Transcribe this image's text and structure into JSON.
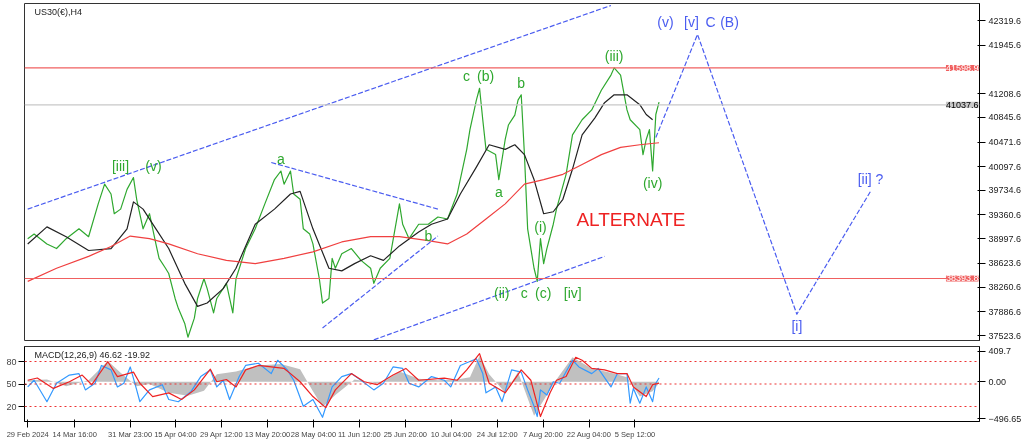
{
  "chart_data": [
    {
      "type": "line",
      "title": "US30(€),H4",
      "xlim": [
        "2024-02-28",
        "2024-12-22"
      ],
      "ylim": [
        37450,
        42580
      ],
      "yticks": [
        42319.6,
        41945.6,
        41208.6,
        40845.6,
        40471.6,
        40097.6,
        39734.6,
        39360.6,
        38997.6,
        38623.6,
        38260.6,
        37886.6,
        37523.6
      ],
      "tick_labels": "y",
      "grid": false,
      "series": [
        {
          "color": "#2fa82f",
          "x": [
            "2024-02-29",
            "2024-03-02",
            "2024-03-06",
            "2024-03-09",
            "2024-03-12",
            "2024-03-16",
            "2024-03-19",
            "2024-03-22",
            "2024-03-24",
            "2024-03-26",
            "2024-03-27",
            "2024-03-29",
            "2024-03-31",
            "2024-04-02",
            "2024-04-03",
            "2024-04-05",
            "2024-04-07",
            "2024-04-09",
            "2024-04-10",
            "2024-04-12",
            "2024-04-13",
            "2024-04-15",
            "2024-04-16",
            "2024-04-18",
            "2024-04-19",
            "2024-04-21",
            "2024-04-22",
            "2024-04-24",
            "2024-04-25",
            "2024-04-27",
            "2024-04-28",
            "2024-05-01",
            "2024-05-03",
            "2024-05-04",
            "2024-05-07",
            "2024-05-10",
            "2024-05-13",
            "2024-05-16",
            "2024-05-18",
            "2024-05-19",
            "2024-05-21",
            "2024-05-22",
            "2024-05-24",
            "2024-05-25",
            "2024-05-27",
            "2024-05-28",
            "2024-05-30",
            "2024-05-31",
            "2024-06-02",
            "2024-06-03",
            "2024-06-04",
            "2024-06-06",
            "2024-06-09",
            "2024-06-12",
            "2024-06-15",
            "2024-06-16",
            "2024-06-18",
            "2024-06-21",
            "2024-06-24",
            "2024-06-25",
            "2024-06-27",
            "2024-06-30",
            "2024-07-03",
            "2024-07-06",
            "2024-07-09",
            "2024-07-12",
            "2024-07-15",
            "2024-07-16",
            "2024-07-18",
            "2024-07-19",
            "2024-07-20",
            "2024-07-21",
            "2024-07-24",
            "2024-07-25",
            "2024-07-27",
            "2024-07-28",
            "2024-07-30",
            "2024-07-31",
            "2024-08-01",
            "2024-08-02",
            "2024-08-03",
            "2024-08-05",
            "2024-08-06",
            "2024-08-07",
            "2024-08-08",
            "2024-08-09",
            "2024-08-11",
            "2024-08-12",
            "2024-08-15",
            "2024-08-17",
            "2024-08-20",
            "2024-08-23",
            "2024-08-26",
            "2024-08-29",
            "2024-08-30",
            "2024-09-01",
            "2024-09-03",
            "2024-09-04",
            "2024-09-07",
            "2024-09-08",
            "2024-09-09",
            "2024-09-10",
            "2024-09-11",
            "2024-09-12",
            "2024-09-13"
          ],
          "values": [
            39000,
            39070,
            38920,
            38850,
            39000,
            39150,
            39030,
            39530,
            39830,
            39680,
            39380,
            39450,
            39750,
            39930,
            39600,
            39150,
            39380,
            38920,
            38700,
            38550,
            38470,
            38090,
            37940,
            37710,
            37500,
            37790,
            38090,
            38390,
            38240,
            37870,
            38090,
            38320,
            37870,
            38390,
            38850,
            39150,
            39530,
            39900,
            40030,
            39830,
            40030,
            39680,
            39600,
            39150,
            39070,
            38920,
            38390,
            38020,
            38090,
            38700,
            38550,
            38770,
            38850,
            38670,
            38550,
            38320,
            38550,
            38700,
            39530,
            39220,
            39000,
            39220,
            39220,
            39330,
            39300,
            39680,
            40360,
            40660,
            41110,
            41290,
            40810,
            40360,
            40280,
            39900,
            40510,
            40730,
            40880,
            41110,
            41190,
            40280,
            39150,
            38550,
            38350,
            39000,
            38620,
            38850,
            39220,
            39450,
            39980,
            40580,
            40810,
            40960,
            41260,
            41490,
            41600,
            41490,
            40960,
            40810,
            40660,
            40280,
            40510,
            40660,
            40030,
            40890,
            41080
          ]
        },
        {
          "color": "#222222",
          "x": [
            "2024-02-29",
            "2024-03-06",
            "2024-03-12",
            "2024-03-19",
            "2024-03-26",
            "2024-03-31",
            "2024-04-02",
            "2024-04-05",
            "2024-04-09",
            "2024-04-13",
            "2024-04-18",
            "2024-04-22",
            "2024-04-25",
            "2024-04-30",
            "2024-05-04",
            "2024-05-10",
            "2024-05-16",
            "2024-05-21",
            "2024-05-24",
            "2024-05-28",
            "2024-06-02",
            "2024-06-06",
            "2024-06-10",
            "2024-06-15",
            "2024-06-19",
            "2024-06-24",
            "2024-06-30",
            "2024-07-04",
            "2024-07-09",
            "2024-07-13",
            "2024-07-18",
            "2024-07-22",
            "2024-07-27",
            "2024-07-30",
            "2024-08-02",
            "2024-08-05",
            "2024-08-08",
            "2024-08-11",
            "2024-08-14",
            "2024-08-17",
            "2024-08-20",
            "2024-08-24",
            "2024-08-27",
            "2024-08-30",
            "2024-09-03",
            "2024-09-07",
            "2024-09-09",
            "2024-09-11"
          ],
          "values": [
            38920,
            39180,
            39030,
            38820,
            38850,
            39150,
            39560,
            39450,
            39150,
            38850,
            38320,
            37970,
            38020,
            38240,
            38550,
            39220,
            39450,
            39680,
            39720,
            39150,
            38550,
            38510,
            38620,
            38740,
            38670,
            38890,
            39100,
            39220,
            39300,
            39680,
            40090,
            40430,
            40360,
            40430,
            40280,
            39900,
            39380,
            39410,
            39600,
            40060,
            40580,
            40840,
            41070,
            41190,
            41190,
            41040,
            40890,
            40810
          ]
        },
        {
          "color": "#f04040",
          "x": [
            "2024-02-29",
            "2024-03-09",
            "2024-03-19",
            "2024-03-26",
            "2024-04-01",
            "2024-04-07",
            "2024-04-13",
            "2024-04-22",
            "2024-05-01",
            "2024-05-10",
            "2024-05-19",
            "2024-05-28",
            "2024-06-06",
            "2024-06-15",
            "2024-06-24",
            "2024-07-03",
            "2024-07-09",
            "2024-07-15",
            "2024-07-21",
            "2024-07-27",
            "2024-08-02",
            "2024-08-08",
            "2024-08-14",
            "2024-08-20",
            "2024-08-26",
            "2024-09-01",
            "2024-09-07",
            "2024-09-13"
          ],
          "values": [
            38350,
            38550,
            38730,
            38880,
            39040,
            39000,
            38920,
            38770,
            38670,
            38620,
            38700,
            38800,
            38950,
            39030,
            39030,
            38970,
            38920,
            39070,
            39300,
            39530,
            39830,
            39900,
            39980,
            40130,
            40280,
            40390,
            40430,
            40460
          ]
        },
        {
          "color": "#4a5cf0",
          "line_style": "dashed",
          "x": [
            "2024-02-29",
            "2024-08-29"
          ],
          "values": [
            39450,
            42550
          ]
        },
        {
          "color": "#4a5cf0",
          "line_style": "dashed",
          "x": [
            "2024-06-16",
            "2024-08-27"
          ],
          "values": [
            37460,
            38730
          ]
        },
        {
          "color": "#4a5cf0",
          "line_style": "dashed",
          "x": [
            "2024-05-15",
            "2024-07-06"
          ],
          "values": [
            40160,
            39450
          ]
        },
        {
          "color": "#4a5cf0",
          "line_style": "dashed",
          "x": [
            "2024-05-31",
            "2024-07-06"
          ],
          "values": [
            37640,
            39040
          ]
        },
        {
          "color": "#4a5cf0",
          "line_style": "dashed",
          "x": [
            "2024-09-12",
            "2024-09-25",
            "2024-10-26",
            "2024-11-18"
          ],
          "values": [
            40540,
            42110,
            37850,
            39720
          ]
        }
      ],
      "ref_lines": [
        {
          "axis": "y",
          "value": 41598.9,
          "label": "41598.9",
          "color": "#f06060"
        },
        {
          "axis": "y",
          "value": 41037.6,
          "label": "41037.6",
          "color": "#c8c8c8"
        },
        {
          "axis": "y",
          "value": 38393.8,
          "label": "38393.8",
          "color": "#f06060"
        }
      ],
      "annotations": [
        {
          "text": "[iii]",
          "x": "2024-04-02",
          "y": 39930
        },
        {
          "text": "(v)",
          "x": "2024-04-02",
          "y": 39930
        },
        {
          "text": "a",
          "x": "2024-05-18",
          "y": 40030
        },
        {
          "text": "c",
          "x": "2024-07-19",
          "y": 41290
        },
        {
          "text": "(b)",
          "x": "2024-07-19",
          "y": 41290
        },
        {
          "text": "b",
          "x": "2024-08-01",
          "y": 41190
        },
        {
          "text": "a",
          "x": "2024-07-25",
          "y": 39900
        },
        {
          "text": "b",
          "x": "2024-07-03",
          "y": 39220
        },
        {
          "text": "(i)",
          "x": "2024-08-07",
          "y": 39000
        },
        {
          "text": "(ii)",
          "x": "2024-08-06",
          "y": 38350
        },
        {
          "text": "c",
          "x": "2024-08-06",
          "y": 38350
        },
        {
          "text": "(c)",
          "x": "2024-08-06",
          "y": 38350
        },
        {
          "text": "[iv]",
          "x": "2024-08-06",
          "y": 38350
        },
        {
          "text": "(iii)",
          "x": "2024-08-30",
          "y": 41600
        },
        {
          "text": "(iv)",
          "x": "2024-09-11",
          "y": 40030
        },
        {
          "text": "(v)",
          "x": "2024-09-25",
          "y": 42110
        },
        {
          "text": "[v]",
          "x": "2024-09-25",
          "y": 42110
        },
        {
          "text": "C",
          "x": "2024-09-25",
          "y": 42110
        },
        {
          "text": "(B)",
          "x": "2024-09-25",
          "y": 42110
        },
        {
          "text": "[i]",
          "x": "2024-10-26",
          "y": 37850
        },
        {
          "text": "[ii] ?",
          "x": "2024-11-18",
          "y": 39720
        },
        "ALTERNATE"
      ]
    },
    {
      "type": "line",
      "title": "MACD(12,26,9) 46.62 -19.92",
      "xlim": [
        "2024-02-28",
        "2024-12-22"
      ],
      "ylim": [
        -537,
        476
      ],
      "yticks": [
        409.7,
        {
          "value": 0,
          "label": "0.00"
        },
        -496.65
      ],
      "y2lim": [
        0,
        100
      ],
      "y2ticks": [
        80,
        50,
        20
      ],
      "xticks": [
        {
          "value": "2024-02-29",
          "label": "29 Feb 2024"
        },
        {
          "value": "2024-03-14T16:00",
          "label": "14 Mar 16:00"
        },
        {
          "value": "2024-03-31T23:00",
          "label": "31 Mar 23:00"
        },
        {
          "value": "2024-04-15T04:00",
          "label": "15 Apr 04:00"
        },
        {
          "value": "2024-04-29T12:00",
          "label": "29 Apr 12:00"
        },
        {
          "value": "2024-05-13T20:00",
          "label": "13 May 20:00"
        },
        {
          "value": "2024-05-28T04:00",
          "label": "28 May 04:00"
        },
        {
          "value": "2024-06-11T12:00",
          "label": "11 Jun 12:00"
        },
        {
          "value": "2024-06-25T20:00",
          "label": "25 Jun 20:00"
        },
        {
          "value": "2024-07-10T04:00",
          "label": "10 Jul 04:00"
        },
        {
          "value": "2024-07-24T12:00",
          "label": "24 Jul 12:00"
        },
        {
          "value": "2024-08-07T20:00",
          "label": "7 Aug 20:00"
        },
        {
          "value": "2024-08-22T04:00",
          "label": "22 Aug 04:00"
        },
        {
          "value": "2024-09-05T12:00",
          "label": "5 Sep 12:00"
        }
      ],
      "grid": false,
      "series": [
        {
          "type": "area",
          "color": "#c0c0c0",
          "x": [
            "2024-02-29",
            "2024-03-06",
            "2024-03-12",
            "2024-03-19",
            "2024-03-25",
            "2024-03-29",
            "2024-04-03",
            "2024-04-07",
            "2024-04-13",
            "2024-04-19",
            "2024-04-24",
            "2024-04-28",
            "2024-05-04",
            "2024-05-11",
            "2024-05-18",
            "2024-05-24",
            "2024-05-28",
            "2024-05-31",
            "2024-06-04",
            "2024-06-10",
            "2024-06-18",
            "2024-06-24",
            "2024-06-30",
            "2024-07-06",
            "2024-07-12",
            "2024-07-16",
            "2024-07-19",
            "2024-07-22",
            "2024-07-27",
            "2024-07-31",
            "2024-08-05",
            "2024-08-08",
            "2024-08-12",
            "2024-08-17",
            "2024-08-23",
            "2024-08-29",
            "2024-09-03",
            "2024-09-07",
            "2024-09-11",
            "2024-09-13"
          ],
          "values": [
            20,
            30,
            -60,
            20,
            280,
            120,
            -60,
            -30,
            -150,
            -190,
            -120,
            100,
            140,
            220,
            240,
            170,
            -130,
            -340,
            -180,
            30,
            -30,
            140,
            40,
            20,
            30,
            60,
            350,
            100,
            -150,
            130,
            -460,
            -250,
            30,
            330,
            180,
            120,
            60,
            -200,
            -130,
            -20
          ]
        },
        {
          "color": "#3399ff",
          "x": [
            "2024-02-29",
            "2024-03-02",
            "2024-03-06",
            "2024-03-09",
            "2024-03-13",
            "2024-03-16",
            "2024-03-18",
            "2024-03-21",
            "2024-03-23",
            "2024-03-26",
            "2024-03-28",
            "2024-03-30",
            "2024-04-01",
            "2024-04-03",
            "2024-04-04",
            "2024-04-07",
            "2024-04-11",
            "2024-04-13",
            "2024-04-16",
            "2024-04-20",
            "2024-04-23",
            "2024-04-26",
            "2024-04-28",
            "2024-04-30",
            "2024-05-02",
            "2024-05-05",
            "2024-05-07",
            "2024-05-11",
            "2024-05-15",
            "2024-05-17",
            "2024-05-20",
            "2024-05-22",
            "2024-05-25",
            "2024-05-28",
            "2024-05-31",
            "2024-06-03",
            "2024-06-06",
            "2024-06-09",
            "2024-06-12",
            "2024-06-16",
            "2024-06-19",
            "2024-06-22",
            "2024-06-25",
            "2024-06-27",
            "2024-06-30",
            "2024-07-04",
            "2024-07-08",
            "2024-07-10",
            "2024-07-13",
            "2024-07-18",
            "2024-07-20",
            "2024-07-21",
            "2024-07-24",
            "2024-07-26",
            "2024-07-29",
            "2024-08-01",
            "2024-08-03",
            "2024-08-05",
            "2024-08-06",
            "2024-08-07",
            "2024-08-09",
            "2024-08-11",
            "2024-08-13",
            "2024-08-17",
            "2024-08-19",
            "2024-08-23",
            "2024-08-25",
            "2024-08-29",
            "2024-08-31",
            "2024-09-03",
            "2024-09-04",
            "2024-09-05",
            "2024-09-07",
            "2024-09-09",
            "2024-09-11",
            "2024-09-12",
            "2024-09-13"
          ],
          "values": [
            -70,
            20,
            -270,
            -20,
            90,
            110,
            -110,
            -20,
            220,
            160,
            -70,
            -20,
            200,
            -110,
            -270,
            -110,
            -40,
            -240,
            -270,
            -130,
            70,
            160,
            -70,
            20,
            -240,
            70,
            220,
            250,
            110,
            290,
            160,
            20,
            -330,
            -240,
            -480,
            -70,
            70,
            110,
            20,
            -110,
            -20,
            200,
            180,
            -20,
            -70,
            70,
            20,
            -70,
            220,
            310,
            110,
            -150,
            -70,
            -270,
            160,
            130,
            -110,
            -330,
            -470,
            -110,
            -180,
            0,
            -20,
            290,
            200,
            110,
            180,
            -70,
            110,
            110,
            -290,
            -90,
            -290,
            -70,
            -270,
            -20,
            50
          ]
        },
        {
          "color": "#ee2222",
          "x": [
            "2024-02-29",
            "2024-03-03",
            "2024-03-08",
            "2024-03-13",
            "2024-03-17",
            "2024-03-20",
            "2024-03-25",
            "2024-03-28",
            "2024-04-02",
            "2024-04-04",
            "2024-04-08",
            "2024-04-13",
            "2024-04-17",
            "2024-04-21",
            "2024-04-26",
            "2024-04-28",
            "2024-05-01",
            "2024-05-04",
            "2024-05-07",
            "2024-05-11",
            "2024-05-15",
            "2024-05-19",
            "2024-05-21",
            "2024-05-24",
            "2024-05-28",
            "2024-06-01",
            "2024-06-04",
            "2024-06-09",
            "2024-06-13",
            "2024-06-17",
            "2024-06-22",
            "2024-06-26",
            "2024-06-30",
            "2024-07-08",
            "2024-07-12",
            "2024-07-15",
            "2024-07-19",
            "2024-07-22",
            "2024-07-27",
            "2024-08-01",
            "2024-08-04",
            "2024-08-07",
            "2024-08-10",
            "2024-08-12",
            "2024-08-15",
            "2024-08-18",
            "2024-08-20",
            "2024-08-23",
            "2024-08-27",
            "2024-08-31",
            "2024-09-03",
            "2024-09-05",
            "2024-09-09",
            "2024-09-11",
            "2024-09-13"
          ],
          "values": [
            20,
            50,
            -90,
            0,
            90,
            -40,
            270,
            70,
            130,
            -20,
            -200,
            -150,
            -240,
            -110,
            170,
            0,
            30,
            -70,
            160,
            220,
            200,
            180,
            110,
            0,
            -200,
            -350,
            -110,
            110,
            0,
            -40,
            90,
            180,
            20,
            50,
            20,
            160,
            380,
            -20,
            -150,
            160,
            20,
            -470,
            -150,
            20,
            70,
            330,
            290,
            180,
            160,
            110,
            110,
            -70,
            -200,
            -40,
            -20
          ]
        }
      ],
      "ref_lines": [
        {
          "axis": "y2",
          "value": 80,
          "color": "#ee3333",
          "line_style": "dotted"
        },
        {
          "axis": "y2",
          "value": 50,
          "color": "#ee3333",
          "line_style": "dotted"
        },
        {
          "axis": "y2",
          "value": 20,
          "color": "#ee3333",
          "line_style": "dotted"
        }
      ]
    }
  ]
}
